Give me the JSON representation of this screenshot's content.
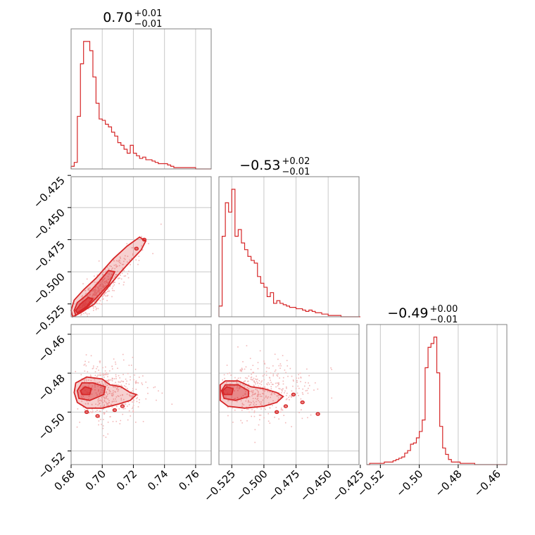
{
  "colors": {
    "series": "#d62728",
    "scatter": "#f2b8b8"
  },
  "panels": [
    {
      "title_value": "0.70",
      "title_plus": "+0.01",
      "title_minus": "−0.01"
    },
    {
      "title_value": "−0.53",
      "title_plus": "+0.02",
      "title_minus": "−0.01"
    },
    {
      "title_value": "−0.49",
      "title_plus": "+0.00",
      "title_minus": "−0.01"
    }
  ],
  "chart_data": {
    "type": "corner",
    "grid": true,
    "parameters": [
      {
        "range": [
          0.68,
          0.77
        ],
        "ticks": [
          0.68,
          0.7,
          0.72,
          0.74,
          0.76
        ],
        "tick_labels": [
          "0.68",
          "0.70",
          "0.72",
          "0.74",
          "0.76"
        ],
        "median": 0.7,
        "err_plus": 0.01,
        "err_minus": 0.01
      },
      {
        "range": [
          -0.535,
          -0.426
        ],
        "ticks": [
          -0.525,
          -0.5,
          -0.475,
          -0.45,
          -0.425
        ],
        "tick_labels": [
          "−0.525",
          "−0.500",
          "−0.475",
          "−0.450",
          "−0.425"
        ],
        "median": -0.53,
        "err_plus": 0.02,
        "err_minus": 0.01
      },
      {
        "range": [
          -0.527,
          -0.455
        ],
        "ticks": [
          -0.52,
          -0.5,
          -0.48,
          -0.46
        ],
        "tick_labels": [
          "−0.52",
          "−0.50",
          "−0.48",
          "−0.46"
        ],
        "median": -0.49,
        "err_plus": 0.0,
        "err_minus": 0.01
      }
    ],
    "histograms": [
      {
        "x_start": 0.68,
        "bin_width": 0.002,
        "counts": [
          2,
          5,
          40,
          80,
          97,
          97,
          90,
          70,
          50,
          38,
          37,
          34,
          32,
          28,
          25,
          20,
          18,
          15,
          12,
          18,
          12,
          10,
          8,
          9,
          7,
          7,
          6,
          5,
          4,
          4,
          4,
          3,
          2,
          1,
          1,
          1,
          1,
          1,
          1,
          1,
          0,
          0,
          0,
          0,
          0
        ]
      },
      {
        "x_start": -0.535,
        "bin_width": 0.0025,
        "counts": [
          8,
          60,
          85,
          78,
          95,
          60,
          65,
          55,
          50,
          45,
          42,
          40,
          30,
          25,
          22,
          15,
          18,
          10,
          12,
          10,
          9,
          8,
          7,
          7,
          6,
          6,
          5,
          4,
          5,
          4,
          3,
          3,
          2,
          2,
          1,
          1,
          1,
          1,
          0,
          0,
          0,
          0,
          0,
          0
        ]
      },
      {
        "x_start": -0.527,
        "bin_width": 0.0015,
        "counts": [
          0,
          1,
          1,
          1,
          1,
          1,
          2,
          2,
          2,
          3,
          4,
          5,
          6,
          9,
          11,
          16,
          17,
          21,
          26,
          35,
          76,
          92,
          95,
          100,
          72,
          30,
          13,
          8,
          4,
          2,
          2,
          2,
          1,
          1,
          1,
          1,
          1,
          0,
          0,
          0,
          0,
          0,
          0,
          0,
          0,
          0,
          0,
          0
        ]
      }
    ],
    "pairs": [
      {
        "x": 0,
        "y": 1,
        "levels": [
          [
            [
              0.681,
              -0.535
            ],
            [
              0.686,
              -0.532
            ],
            [
              0.695,
              -0.525
            ],
            [
              0.705,
              -0.51
            ],
            [
              0.712,
              -0.5
            ],
            [
              0.718,
              -0.492
            ],
            [
              0.725,
              -0.483
            ],
            [
              0.728,
              -0.476
            ],
            [
              0.724,
              -0.473
            ],
            [
              0.716,
              -0.48
            ],
            [
              0.707,
              -0.49
            ],
            [
              0.696,
              -0.505
            ],
            [
              0.688,
              -0.514
            ],
            [
              0.682,
              -0.522
            ],
            [
              0.68,
              -0.53
            ]
          ],
          [
            [
              0.683,
              -0.534
            ],
            [
              0.69,
              -0.528
            ],
            [
              0.698,
              -0.518
            ],
            [
              0.704,
              -0.51
            ],
            [
              0.708,
              -0.5
            ],
            [
              0.704,
              -0.499
            ],
            [
              0.697,
              -0.509
            ],
            [
              0.69,
              -0.518
            ],
            [
              0.684,
              -0.524
            ],
            [
              0.682,
              -0.53
            ]
          ],
          [
            [
              0.684,
              -0.532
            ],
            [
              0.69,
              -0.527
            ],
            [
              0.694,
              -0.521
            ],
            [
              0.691,
              -0.52
            ],
            [
              0.686,
              -0.525
            ],
            [
              0.683,
              -0.53
            ]
          ]
        ],
        "blobs": [
          [
            0.722,
            -0.482
          ],
          [
            0.727,
            -0.475
          ]
        ]
      },
      {
        "x": 0,
        "y": 2,
        "levels": [
          [
            [
              0.682,
              -0.49
            ],
            [
              0.683,
              -0.485
            ],
            [
              0.69,
              -0.482
            ],
            [
              0.7,
              -0.483
            ],
            [
              0.705,
              -0.486
            ],
            [
              0.712,
              -0.487
            ],
            [
              0.718,
              -0.49
            ],
            [
              0.722,
              -0.491
            ],
            [
              0.718,
              -0.494
            ],
            [
              0.71,
              -0.496
            ],
            [
              0.7,
              -0.498
            ],
            [
              0.69,
              -0.498
            ],
            [
              0.684,
              -0.495
            ]
          ],
          [
            [
              0.684,
              -0.489
            ],
            [
              0.687,
              -0.485
            ],
            [
              0.694,
              -0.485
            ],
            [
              0.702,
              -0.487
            ],
            [
              0.701,
              -0.491
            ],
            [
              0.692,
              -0.494
            ],
            [
              0.685,
              -0.493
            ]
          ],
          [
            [
              0.686,
              -0.489
            ],
            [
              0.689,
              -0.487
            ],
            [
              0.693,
              -0.488
            ],
            [
              0.692,
              -0.491
            ],
            [
              0.687,
              -0.491
            ]
          ]
        ],
        "blobs": [
          [
            0.708,
            -0.499
          ],
          [
            0.713,
            -0.497
          ],
          [
            0.697,
            -0.502
          ],
          [
            0.69,
            -0.5
          ]
        ]
      },
      {
        "x": 1,
        "y": 2,
        "levels": [
          [
            [
              -0.534,
              -0.49
            ],
            [
              -0.534,
              -0.486
            ],
            [
              -0.53,
              -0.484
            ],
            [
              -0.52,
              -0.484
            ],
            [
              -0.51,
              -0.487
            ],
            [
              -0.5,
              -0.488
            ],
            [
              -0.49,
              -0.49
            ],
            [
              -0.485,
              -0.492
            ],
            [
              -0.49,
              -0.495
            ],
            [
              -0.5,
              -0.497
            ],
            [
              -0.515,
              -0.498
            ],
            [
              -0.528,
              -0.497
            ],
            [
              -0.534,
              -0.494
            ]
          ],
          [
            [
              -0.533,
              -0.489
            ],
            [
              -0.53,
              -0.486
            ],
            [
              -0.52,
              -0.486
            ],
            [
              -0.512,
              -0.489
            ],
            [
              -0.512,
              -0.492
            ],
            [
              -0.522,
              -0.494
            ],
            [
              -0.531,
              -0.493
            ]
          ],
          [
            [
              -0.532,
              -0.489
            ],
            [
              -0.529,
              -0.487
            ],
            [
              -0.524,
              -0.488
            ],
            [
              -0.525,
              -0.491
            ],
            [
              -0.531,
              -0.491
            ]
          ]
        ],
        "blobs": [
          [
            -0.483,
            -0.497
          ],
          [
            -0.477,
            -0.491
          ],
          [
            -0.47,
            -0.495
          ],
          [
            -0.458,
            -0.501
          ],
          [
            -0.49,
            -0.5
          ]
        ]
      }
    ]
  }
}
